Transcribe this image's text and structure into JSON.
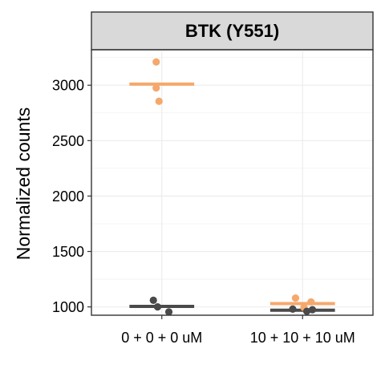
{
  "chart_data": {
    "type": "scatter",
    "facet_title": "BTK (Y551)",
    "ylabel": "Normalized counts",
    "xlabel": "",
    "categories": [
      "0 + 0 + 0 uM",
      "10 + 10 + 10 uM"
    ],
    "ylim": [
      925,
      3320
    ],
    "yticks": [
      1000,
      1500,
      2000,
      2500,
      3000
    ],
    "grid": true,
    "legend": "none",
    "series": [
      {
        "color": "#f5a86c",
        "points": [
          {
            "category": "0 + 0 + 0 uM",
            "offset": -0.04,
            "y": 3210
          },
          {
            "category": "0 + 0 + 0 uM",
            "offset": -0.04,
            "y": 2975
          },
          {
            "category": "0 + 0 + 0 uM",
            "offset": -0.02,
            "y": 2855
          },
          {
            "category": "10 + 10 + 10 uM",
            "offset": -0.05,
            "y": 1080
          },
          {
            "category": "10 + 10 + 10 uM",
            "offset": 0.06,
            "y": 1045
          },
          {
            "category": "10 + 10 + 10 uM",
            "offset": 0.01,
            "y": 995
          }
        ],
        "means": [
          {
            "category": "0 + 0 + 0 uM",
            "y": 3010
          },
          {
            "category": "10 + 10 + 10 uM",
            "y": 1030
          }
        ]
      },
      {
        "color": "#4a4a4a",
        "points": [
          {
            "category": "0 + 0 + 0 uM",
            "offset": -0.06,
            "y": 1060
          },
          {
            "category": "0 + 0 + 0 uM",
            "offset": -0.03,
            "y": 1000
          },
          {
            "category": "0 + 0 + 0 uM",
            "offset": 0.05,
            "y": 955
          },
          {
            "category": "10 + 10 + 10 uM",
            "offset": -0.07,
            "y": 980
          },
          {
            "category": "10 + 10 + 10 uM",
            "offset": 0.03,
            "y": 960
          },
          {
            "category": "10 + 10 + 10 uM",
            "offset": 0.07,
            "y": 975
          }
        ],
        "means": [
          {
            "category": "0 + 0 + 0 uM",
            "y": 1005
          },
          {
            "category": "10 + 10 + 10 uM",
            "y": 970
          }
        ]
      }
    ]
  }
}
